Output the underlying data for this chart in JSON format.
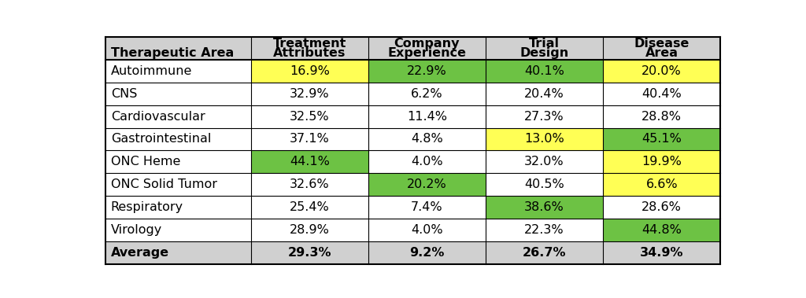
{
  "col_headers_l1": [
    "",
    "Treatment",
    "Company",
    "Trial",
    "Disease"
  ],
  "col_headers_l2": [
    "Therapeutic Area",
    "Attributes",
    "Experience",
    "Design",
    "Area"
  ],
  "row_labels": [
    "Autoimmune",
    "CNS",
    "Cardiovascular",
    "Gastrointestinal",
    "ONC Heme",
    "ONC Solid Tumor",
    "Respiratory",
    "Virology",
    "Average"
  ],
  "values": [
    [
      "16.9%",
      "22.9%",
      "40.1%",
      "20.0%"
    ],
    [
      "32.9%",
      "6.2%",
      "20.4%",
      "40.4%"
    ],
    [
      "32.5%",
      "11.4%",
      "27.3%",
      "28.8%"
    ],
    [
      "37.1%",
      "4.8%",
      "13.0%",
      "45.1%"
    ],
    [
      "44.1%",
      "4.0%",
      "32.0%",
      "19.9%"
    ],
    [
      "32.6%",
      "20.2%",
      "40.5%",
      "6.6%"
    ],
    [
      "25.4%",
      "7.4%",
      "38.6%",
      "28.6%"
    ],
    [
      "28.9%",
      "4.0%",
      "22.3%",
      "44.8%"
    ],
    [
      "29.3%",
      "9.2%",
      "26.7%",
      "34.9%"
    ]
  ],
  "cell_colors": [
    [
      "#ffff55",
      "#6dc244",
      "#6dc244",
      "#ffff55"
    ],
    [
      "none",
      "none",
      "none",
      "none"
    ],
    [
      "none",
      "none",
      "none",
      "none"
    ],
    [
      "none",
      "none",
      "#ffff55",
      "#6dc244"
    ],
    [
      "#6dc244",
      "none",
      "none",
      "#ffff55"
    ],
    [
      "none",
      "#6dc244",
      "none",
      "#ffff55"
    ],
    [
      "none",
      "none",
      "#6dc244",
      "none"
    ],
    [
      "none",
      "none",
      "none",
      "#6dc244"
    ],
    [
      "none",
      "none",
      "none",
      "none"
    ]
  ],
  "header_bg": "#d0d0d0",
  "avg_bg": "#d0d0d0",
  "white_bg": "#ffffff",
  "border_color": "#000000",
  "text_color": "#000000",
  "col_props": [
    0.235,
    0.19,
    0.19,
    0.19,
    0.19
  ],
  "figsize": [
    10.24,
    3.79
  ],
  "dpi": 100,
  "fontsize": 11.5,
  "header_fontsize": 11.5
}
